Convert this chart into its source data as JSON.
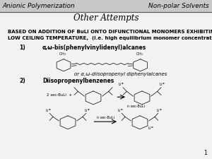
{
  "header_left": "Anionic Polymerization",
  "header_right": "Non-polar Solvents",
  "title": "Other Attempts",
  "body_line1": "BASED ON ADDITION OF BuLI ONTO DIFUNCTIONAL MONOMERS EXHIBITING :",
  "body_line2": "LOW CEILING TEMPERATURE,  (i.e. high equilibrium monomer concentration)",
  "item1_num": "1)",
  "item1_text": "α,ω-bis(phenylvinylidenyl)alcanes",
  "item1_sub": "or α,ω-diisopropenyl diphenylalcanes",
  "item2_num": "2)",
  "item2_text": "Diisopropenylbenzenes",
  "header_bg": "#c8c8c8",
  "bg_color": "#f2f2f2",
  "page_num": "1",
  "header_fontsize": 6.5,
  "title_fontsize": 8.5,
  "body_fontsize": 5.0,
  "item_fontsize": 5.5
}
